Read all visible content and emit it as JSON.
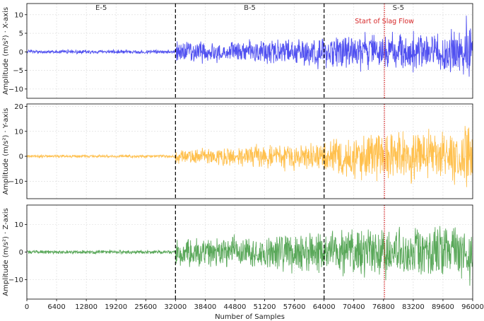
{
  "chart_data": {
    "type": "line",
    "layout": "three vertically stacked subplots sharing the x-axis",
    "xlabel": "Number of Samples",
    "xlim": [
      0,
      96000
    ],
    "xticks": [
      0,
      6400,
      12800,
      19200,
      25600,
      32000,
      38400,
      44800,
      51200,
      57600,
      64000,
      70400,
      76800,
      83200,
      89600,
      96000
    ],
    "xtick_labels": [
      "0",
      "6400",
      "12800",
      "19200",
      "25600",
      "32000",
      "38400",
      "44800",
      "51200",
      "57600",
      "64000",
      "70400",
      "76800",
      "83200",
      "89600",
      "96000"
    ],
    "grid": true,
    "phase_boundaries": [
      32000,
      64000
    ],
    "phase_boundary_style": "black dashed",
    "phases": [
      {
        "label": "E-5",
        "x_center": 16000
      },
      {
        "label": "B-5",
        "x_center": 48000
      },
      {
        "label": "S-5",
        "x_center": 80000
      }
    ],
    "annotation": {
      "label": "Start of Slag Flow",
      "x": 77000,
      "color": "#d62728",
      "style": "red dotted vertical line",
      "panel": "top"
    },
    "panels": [
      {
        "axis": "X",
        "ylabel": "Amplitude (m/s²) · X-axis",
        "color": "#5050f0",
        "ylim": [
          -12.5,
          13
        ],
        "yticks": [
          -10,
          -5,
          0,
          5,
          10
        ],
        "ytick_labels": [
          "−10",
          "−5",
          "0",
          "5",
          "10"
        ],
        "amplitude_envelope": {
          "x": [
            0,
            32000,
            32000,
            48000,
            55000,
            64000,
            66000,
            77000,
            90000,
            94000,
            95000,
            96000
          ],
          "y": [
            0.6,
            0.6,
            3.2,
            3.6,
            4.5,
            4.8,
            5.5,
            6.0,
            6.3,
            7.5,
            12.0,
            6.0
          ]
        }
      },
      {
        "axis": "Y",
        "ylabel": "Amplitude (m/s²) · Y-axis",
        "color": "#ffc04d",
        "ylim": [
          -17,
          21
        ],
        "yticks": [
          -10,
          0,
          10,
          20
        ],
        "ytick_labels": [
          "−10",
          "0",
          "10",
          "20"
        ],
        "amplitude_envelope": {
          "x": [
            0,
            32000,
            32000,
            48000,
            55000,
            64000,
            66000,
            77000,
            90000,
            94000,
            95000,
            96000
          ],
          "y": [
            0.7,
            0.7,
            3.5,
            5.0,
            6.0,
            7.0,
            10.0,
            11.5,
            12.0,
            13.0,
            18.0,
            13.0
          ]
        }
      },
      {
        "axis": "Z",
        "ylabel": "Amplitude (m/s²) · Z-axis",
        "color": "#5aa85a",
        "ylim": [
          -17,
          17
        ],
        "yticks": [
          -10,
          0,
          10
        ],
        "ytick_labels": [
          "−10",
          "0",
          "10"
        ],
        "amplitude_envelope": {
          "x": [
            0,
            32000,
            32000,
            48000,
            55000,
            64000,
            66000,
            77000,
            90000,
            94000,
            95000,
            96000
          ],
          "y": [
            0.8,
            0.8,
            5.5,
            7.0,
            8.0,
            9.0,
            10.0,
            10.5,
            11.0,
            11.5,
            15.0,
            11.0
          ]
        }
      }
    ]
  }
}
